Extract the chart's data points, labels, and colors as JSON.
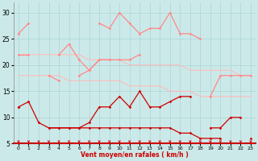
{
  "x": [
    0,
    1,
    2,
    3,
    4,
    5,
    6,
    7,
    8,
    9,
    10,
    11,
    12,
    13,
    14,
    15,
    16,
    17,
    18,
    19,
    20,
    21,
    22,
    23
  ],
  "gust1": [
    26,
    28,
    null,
    null,
    null,
    null,
    null,
    null,
    28,
    27,
    30,
    28,
    26,
    27,
    27,
    30,
    26,
    26,
    25,
    null,
    null,
    null,
    null,
    null
  ],
  "gust2": [
    22,
    22,
    null,
    null,
    22,
    24,
    21,
    19,
    21,
    21,
    21,
    21,
    22,
    null,
    null,
    null,
    null,
    null,
    null,
    null,
    null,
    null,
    null,
    null
  ],
  "gust3": [
    null,
    null,
    null,
    18,
    17,
    null,
    18,
    19,
    21,
    21,
    null,
    null,
    null,
    null,
    null,
    null,
    null,
    null,
    null,
    14,
    18,
    18,
    18,
    18
  ],
  "pink_band_top": [
    22,
    22,
    22,
    22,
    22,
    22,
    22,
    21,
    21,
    21,
    21,
    20,
    20,
    20,
    20,
    20,
    20,
    19,
    19,
    19,
    19,
    19,
    18,
    18
  ],
  "pink_band_bot": [
    18,
    18,
    18,
    18,
    18,
    17,
    17,
    17,
    17,
    17,
    17,
    16,
    16,
    16,
    16,
    15,
    15,
    15,
    14,
    14,
    14,
    14,
    14,
    14
  ],
  "avg1": [
    12,
    13,
    9,
    8,
    8,
    8,
    8,
    9,
    12,
    12,
    14,
    12,
    15,
    12,
    12,
    13,
    14,
    14,
    null,
    8,
    8,
    10,
    10,
    null
  ],
  "avg2": [
    12,
    null,
    null,
    8,
    8,
    8,
    8,
    8,
    8,
    8,
    8,
    8,
    8,
    8,
    8,
    8,
    7,
    7,
    6,
    6,
    6,
    null,
    null,
    6
  ],
  "background_color": "#cce9e9",
  "grid_color": "#aad4d4",
  "xlabel": "Vent moyen/en rafales ( km/h )",
  "ylim": [
    5,
    32
  ],
  "yticks": [
    5,
    10,
    15,
    20,
    25,
    30
  ],
  "xlim": [
    -0.5,
    23.5
  ]
}
